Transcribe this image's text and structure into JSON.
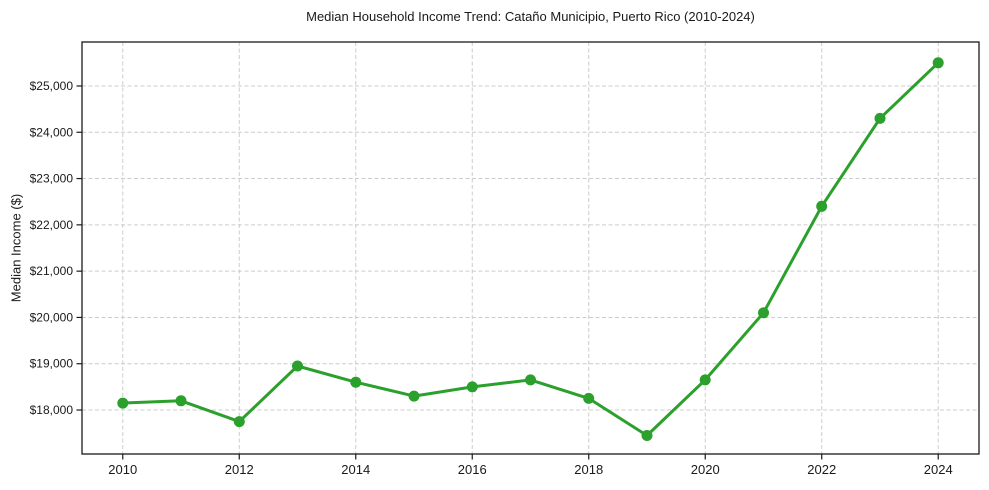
{
  "chart_data": {
    "type": "line",
    "title": "Median Household Income Trend: Cataño Municipio, Puerto Rico (2010-2024)",
    "xlabel": "",
    "ylabel": "Median Income ($)",
    "x": [
      2010,
      2011,
      2012,
      2013,
      2014,
      2015,
      2016,
      2017,
      2018,
      2019,
      2020,
      2021,
      2022,
      2023,
      2024
    ],
    "values": [
      18150,
      18200,
      17750,
      18950,
      18600,
      18300,
      18500,
      18650,
      18250,
      17450,
      18650,
      20100,
      22400,
      24300,
      25500
    ],
    "x_ticks": [
      2010,
      2012,
      2014,
      2016,
      2018,
      2020,
      2022,
      2024
    ],
    "x_tick_labels": [
      "2010",
      "2012",
      "2014",
      "2016",
      "2018",
      "2020",
      "2022",
      "2024"
    ],
    "y_ticks": [
      18000,
      19000,
      20000,
      21000,
      22000,
      23000,
      24000,
      25000
    ],
    "y_tick_labels": [
      "$18,000",
      "$19,000",
      "$20,000",
      "$21,000",
      "$22,000",
      "$23,000",
      "$24,000",
      "$25,000"
    ],
    "xlim": [
      2009.3,
      2024.7
    ],
    "ylim": [
      17050,
      25950
    ],
    "grid": true,
    "grid_style": "dashed",
    "legend": "none",
    "marker": "circle",
    "line_color": "#2ca02c",
    "grid_color": "#cccccc",
    "axis_color": "#1a1a1a",
    "background_color": "#ffffff"
  }
}
